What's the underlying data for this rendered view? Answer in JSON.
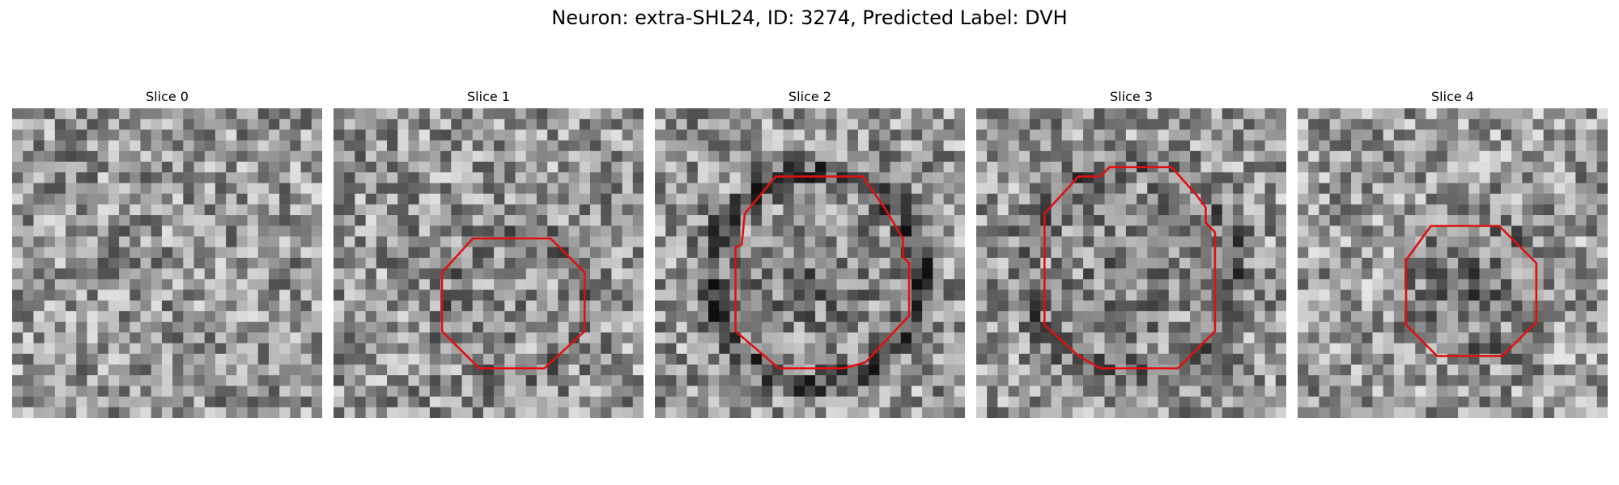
{
  "figure": {
    "title": "Neuron: extra-SHL24, ID: 3274, Predicted Label: DVH"
  },
  "colors": {
    "outline": "#e01010",
    "background": "#ffffff",
    "text": "#000000"
  },
  "slices": [
    {
      "title": "Slice 0",
      "has_outline": false,
      "seed": 11,
      "base_gray": 150,
      "ring_darkness": 0,
      "center_darkness": 0,
      "center": [
        0.5,
        0.5
      ],
      "radius": 0.0,
      "outline": []
    },
    {
      "title": "Slice 1",
      "has_outline": true,
      "seed": 23,
      "base_gray": 150,
      "ring_darkness": 25,
      "center_darkness": 10,
      "center": [
        0.58,
        0.63
      ],
      "radius": 0.23,
      "outline": [
        [
          0.45,
          0.42
        ],
        [
          0.7,
          0.42
        ],
        [
          0.81,
          0.53
        ],
        [
          0.81,
          0.72
        ],
        [
          0.68,
          0.84
        ],
        [
          0.47,
          0.84
        ],
        [
          0.35,
          0.72
        ],
        [
          0.35,
          0.53
        ]
      ]
    },
    {
      "title": "Slice 2",
      "has_outline": true,
      "seed": 37,
      "base_gray": 150,
      "ring_darkness": 75,
      "center_darkness": 40,
      "center": [
        0.52,
        0.55
      ],
      "radius": 0.34,
      "outline": [
        [
          0.39,
          0.22
        ],
        [
          0.67,
          0.22
        ],
        [
          0.74,
          0.32
        ],
        [
          0.8,
          0.42
        ],
        [
          0.8,
          0.48
        ],
        [
          0.82,
          0.5
        ],
        [
          0.82,
          0.67
        ],
        [
          0.68,
          0.82
        ],
        [
          0.61,
          0.84
        ],
        [
          0.4,
          0.84
        ],
        [
          0.26,
          0.72
        ],
        [
          0.26,
          0.45
        ],
        [
          0.28,
          0.44
        ],
        [
          0.29,
          0.34
        ]
      ]
    },
    {
      "title": "Slice 3",
      "has_outline": true,
      "seed": 53,
      "base_gray": 150,
      "ring_darkness": 45,
      "center_darkness": 35,
      "center": [
        0.5,
        0.52
      ],
      "radius": 0.34,
      "outline": [
        [
          0.43,
          0.19
        ],
        [
          0.63,
          0.19
        ],
        [
          0.71,
          0.28
        ],
        [
          0.74,
          0.32
        ],
        [
          0.74,
          0.37
        ],
        [
          0.77,
          0.4
        ],
        [
          0.77,
          0.72
        ],
        [
          0.65,
          0.84
        ],
        [
          0.4,
          0.84
        ],
        [
          0.33,
          0.8
        ],
        [
          0.22,
          0.7
        ],
        [
          0.22,
          0.34
        ],
        [
          0.33,
          0.22
        ],
        [
          0.4,
          0.22
        ]
      ]
    },
    {
      "title": "Slice 4",
      "has_outline": true,
      "seed": 71,
      "base_gray": 155,
      "ring_darkness": 30,
      "center_darkness": 75,
      "center": [
        0.58,
        0.6
      ],
      "radius": 0.21,
      "outline": [
        [
          0.43,
          0.38
        ],
        [
          0.65,
          0.38
        ],
        [
          0.77,
          0.5
        ],
        [
          0.77,
          0.69
        ],
        [
          0.66,
          0.8
        ],
        [
          0.45,
          0.8
        ],
        [
          0.35,
          0.7
        ],
        [
          0.35,
          0.49
        ]
      ]
    }
  ]
}
